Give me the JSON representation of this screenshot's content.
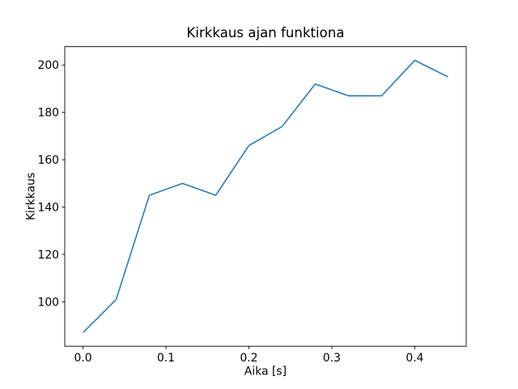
{
  "chart_data": {
    "type": "line",
    "title": "Kirkkaus ajan funktiona",
    "xlabel": "Aika [s]",
    "ylabel": "Kirkkaus",
    "x": [
      0.0,
      0.04,
      0.08,
      0.12,
      0.16,
      0.2,
      0.24,
      0.28,
      0.32,
      0.36,
      0.4,
      0.44
    ],
    "y": [
      87,
      101,
      145,
      150,
      145,
      166,
      174,
      192,
      187,
      187,
      202,
      195
    ],
    "series_name": "Kirkkaus",
    "xlim": [
      -0.022,
      0.462
    ],
    "ylim": [
      81.25,
      207.75
    ],
    "xticks": [
      0.0,
      0.1,
      0.2,
      0.3,
      0.4
    ],
    "xtick_labels": [
      "0.0",
      "0.1",
      "0.2",
      "0.3",
      "0.4"
    ],
    "yticks": [
      100,
      120,
      140,
      160,
      180,
      200
    ],
    "ytick_labels": [
      "100",
      "120",
      "140",
      "160",
      "180",
      "200"
    ],
    "line_color": "#1f77b4",
    "line_width": 1.5,
    "spine_color": "#000000",
    "background_color": "#ffffff",
    "grid": false,
    "legend": null,
    "marker": "none"
  }
}
